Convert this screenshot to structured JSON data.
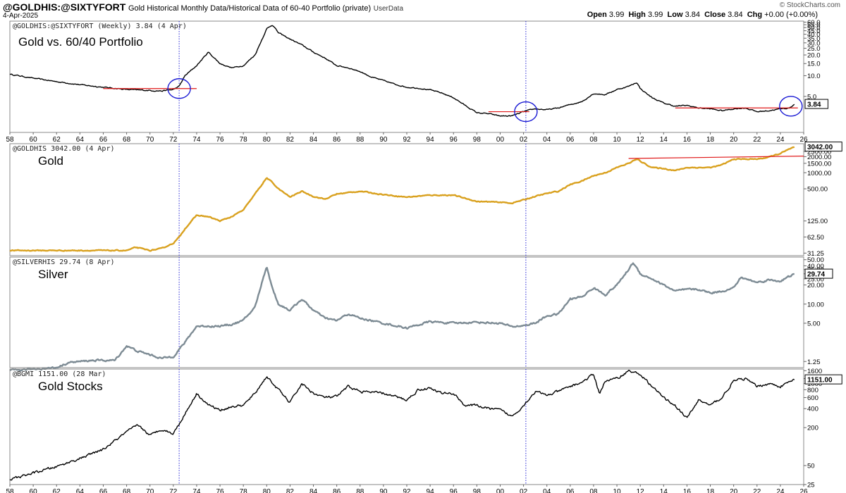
{
  "header": {
    "symbol": "@GOLDHIS:@SIXTYFORT",
    "description": "Gold Historical Monthly Data/Historical Data of 60-40 Portfolio (private)",
    "source": "UserData",
    "date": "4-Apr-2025",
    "brand": "© StockCharts.com",
    "ohlc": {
      "open_label": "Open",
      "open": "3.99",
      "high_label": "High",
      "high": "3.99",
      "low_label": "Low",
      "low": "3.84",
      "close_label": "Close",
      "close": "3.84",
      "chg_label": "Chg",
      "chg": "+0.00 (+0.00%)"
    }
  },
  "x_axis": {
    "start_year": 1958,
    "end_year": 2026,
    "tick_labels": [
      "58",
      "60",
      "62",
      "64",
      "66",
      "68",
      "70",
      "72",
      "74",
      "76",
      "78",
      "80",
      "82",
      "84",
      "86",
      "88",
      "90",
      "92",
      "94",
      "96",
      "98",
      "00",
      "02",
      "04",
      "06",
      "08",
      "10",
      "12",
      "14",
      "16",
      "18",
      "20",
      "22",
      "24",
      "26"
    ]
  },
  "chart_data": [
    {
      "type": "line",
      "panel": "ratio",
      "series_label": "@GOLDHIS:@SIXTYFORT (Weekly) 3.84 (4 Apr)",
      "title": "Gold vs. 60/40 Portfolio",
      "last_value": "3.84",
      "color": "#000000",
      "scale": "log",
      "ylim": [
        1.5,
        62
      ],
      "tick_labels": [
        "60.0",
        "55.0",
        "50.0",
        "45.0",
        "40.0",
        "35.0",
        "30.0",
        "25.0",
        "20.0",
        "15.0",
        "10.0",
        "5.0"
      ],
      "tick_values": [
        60,
        55,
        50,
        45,
        40,
        35,
        30,
        25,
        20,
        15,
        10,
        5
      ],
      "x": [
        1958,
        1960,
        1962,
        1964,
        1966,
        1968,
        1970,
        1971,
        1972,
        1972.5,
        1973,
        1974,
        1975,
        1976,
        1977,
        1978,
        1979,
        1980,
        1980.5,
        1981,
        1982,
        1983,
        1984,
        1985,
        1986,
        1987,
        1988,
        1989,
        1990,
        1991,
        1992,
        1993,
        1994,
        1995,
        1996,
        1997,
        1998,
        1999,
        2000,
        2001,
        2002,
        2003,
        2004,
        2005,
        2006,
        2007,
        2008,
        2009,
        2010,
        2011,
        2011.7,
        2012,
        2013,
        2014,
        2015,
        2016,
        2017,
        2018,
        2019,
        2020,
        2021,
        2022,
        2023,
        2024,
        2024.8,
        2025.2
      ],
      "y": [
        10.5,
        9.2,
        8.2,
        7.4,
        6.8,
        6.3,
        6.1,
        6.0,
        6.3,
        7.0,
        10,
        14,
        22,
        15,
        13,
        14,
        20,
        48,
        55,
        42,
        34,
        28,
        22,
        18,
        14,
        13,
        11.5,
        9.5,
        8.5,
        7.5,
        6.8,
        6.6,
        6.2,
        5.6,
        4.8,
        3.7,
        2.9,
        2.8,
        2.6,
        2.6,
        3.0,
        3.3,
        3.2,
        3.4,
        3.8,
        4.2,
        5.5,
        5.3,
        6.3,
        7.0,
        8.0,
        6.5,
        4.8,
        4.0,
        3.6,
        3.7,
        3.4,
        3.3,
        3.1,
        3.3,
        3.4,
        3.0,
        3.1,
        3.3,
        3.4,
        3.84
      ],
      "annotations": {
        "resistance_lines": [
          {
            "x_from": 1966,
            "x_to": 1974,
            "y": 6.5
          },
          {
            "x_from": 1999,
            "x_to": 2002.5,
            "y": 3.0
          },
          {
            "x_from": 2015,
            "x_to": 2025.5,
            "y": 3.4
          }
        ],
        "circles_at": [
          [
            1972.5,
            6.5
          ],
          [
            2002.2,
            3.0
          ],
          [
            2024.9,
            3.6
          ]
        ]
      }
    },
    {
      "type": "line",
      "panel": "gold",
      "series_label": "@GOLDHIS 3042.00 (4 Apr)",
      "title": "Gold",
      "last_value": "3042.00",
      "color": "#d9a11f",
      "scale": "log",
      "ylim": [
        28,
        3500
      ],
      "tick_labels": [
        "2500.00",
        "2000.00",
        "1500.00",
        "1000.00",
        "500.00",
        "125.00",
        "62.50",
        "31.25"
      ],
      "tick_values": [
        2500,
        2000,
        1500,
        1000,
        500,
        125,
        62.5,
        31.25
      ],
      "x": [
        1958,
        1967,
        1968,
        1968.8,
        1970,
        1971,
        1972,
        1972.5,
        1973,
        1974,
        1975,
        1976,
        1977,
        1978,
        1979,
        1980,
        1980.5,
        1981,
        1982,
        1983,
        1984,
        1985,
        1986,
        1988,
        1990,
        1992,
        1994,
        1996,
        1998,
        2000,
        2001,
        2002,
        2003,
        2004,
        2005,
        2006,
        2007,
        2008,
        2009,
        2010,
        2011,
        2011.7,
        2012,
        2013,
        2014,
        2015,
        2016,
        2017,
        2018,
        2019,
        2020,
        2021,
        2022,
        2023,
        2024,
        2025.2
      ],
      "y": [
        35,
        35,
        35,
        40,
        35,
        38,
        48,
        62,
        90,
        160,
        150,
        125,
        150,
        200,
        400,
        800,
        650,
        500,
        350,
        450,
        360,
        320,
        400,
        450,
        390,
        350,
        380,
        380,
        290,
        280,
        270,
        310,
        360,
        410,
        450,
        600,
        700,
        880,
        1000,
        1250,
        1500,
        1800,
        1650,
        1250,
        1200,
        1100,
        1250,
        1250,
        1250,
        1400,
        1800,
        1800,
        1800,
        1950,
        2300,
        3042
      ],
      "annotations": {
        "resistance_lines": [
          {
            "x_from": 2011,
            "x_to": 2026,
            "y_from": 1850,
            "y_to": 2050
          }
        ]
      }
    },
    {
      "type": "line",
      "panel": "silver",
      "series_label": "@SILVERHIS 29.74 (8 Apr)",
      "title": "Silver",
      "last_value": "29.74",
      "color": "#7d8b94",
      "scale": "log",
      "ylim": [
        1,
        55
      ],
      "tick_labels": [
        "50.00",
        "40.00",
        "35.00",
        "30.00",
        "25.00",
        "20.00",
        "10.00",
        "5.00",
        "1.25"
      ],
      "tick_values": [
        50,
        40,
        35,
        30,
        25,
        20,
        10,
        5,
        1.25
      ],
      "x": [
        1958,
        1962,
        1963,
        1965,
        1967,
        1968,
        1969,
        1970,
        1971,
        1972,
        1973,
        1974,
        1975,
        1976,
        1977,
        1978,
        1979,
        1980,
        1980.4,
        1981,
        1982,
        1983,
        1984,
        1985,
        1986,
        1987,
        1988,
        1990,
        1992,
        1994,
        1996,
        1998,
        2000,
        2001,
        2002,
        2003,
        2004,
        2005,
        2006,
        2007,
        2008,
        2009,
        2010,
        2011,
        2011.4,
        2012,
        2013,
        2014,
        2015,
        2016,
        2017,
        2018,
        2019,
        2020,
        2020.6,
        2021,
        2022,
        2023,
        2024,
        2025.2
      ],
      "y": [
        0.9,
        1.0,
        1.2,
        1.3,
        1.3,
        2.2,
        1.8,
        1.6,
        1.4,
        1.5,
        2.5,
        4.5,
        4.5,
        4.5,
        4.8,
        5.5,
        9,
        40,
        20,
        10,
        8,
        12,
        8,
        6,
        5.5,
        7,
        6,
        5,
        4.2,
        5.3,
        5.0,
        5.2,
        5.0,
        4.4,
        4.6,
        5.0,
        6.5,
        7.0,
        12,
        13,
        18,
        14,
        20,
        35,
        45,
        30,
        25,
        20,
        16,
        17,
        17,
        15,
        16,
        18,
        26,
        25,
        22,
        24,
        23,
        29.74
      ]
    },
    {
      "type": "line",
      "panel": "gold_stocks",
      "series_label": "@BGMI 1151.00 (28 Mar)",
      "title": "Gold Stocks",
      "last_value": "1151.00",
      "color": "#000000",
      "scale": "log",
      "ylim": [
        25,
        1700
      ],
      "tick_labels": [
        "1600",
        "1200",
        "1000",
        "800",
        "600",
        "400",
        "200",
        "50",
        "25"
      ],
      "tick_values": [
        1600,
        1200,
        1000,
        800,
        600,
        400,
        200,
        50,
        25
      ],
      "x": [
        1958,
        1960,
        1962,
        1964,
        1966,
        1968,
        1969,
        1970,
        1971,
        1972,
        1973,
        1974,
        1975,
        1976,
        1977,
        1978,
        1979,
        1980,
        1981,
        1982,
        1983,
        1984,
        1985,
        1986,
        1987,
        1988,
        1990,
        1992,
        1993,
        1994,
        1995,
        1996,
        1997,
        1998,
        1999,
        2000,
        2001,
        2002,
        2003,
        2004,
        2005,
        2006,
        2007,
        2008,
        2008.5,
        2009,
        2010,
        2011,
        2012,
        2013,
        2014,
        2015,
        2016,
        2017,
        2018,
        2019,
        2020,
        2021,
        2022,
        2023,
        2024,
        2025.2
      ],
      "y": [
        30,
        38,
        48,
        65,
        90,
        170,
        220,
        150,
        190,
        160,
        330,
        700,
        460,
        380,
        430,
        450,
        700,
        1300,
        800,
        500,
        1000,
        700,
        600,
        620,
        900,
        750,
        700,
        550,
        800,
        850,
        700,
        700,
        450,
        450,
        400,
        380,
        300,
        450,
        750,
        650,
        750,
        900,
        1050,
        1400,
        700,
        1100,
        1200,
        1600,
        1400,
        900,
        600,
        450,
        280,
        550,
        450,
        600,
        1100,
        1200,
        900,
        1000,
        900,
        1151
      ]
    }
  ]
}
